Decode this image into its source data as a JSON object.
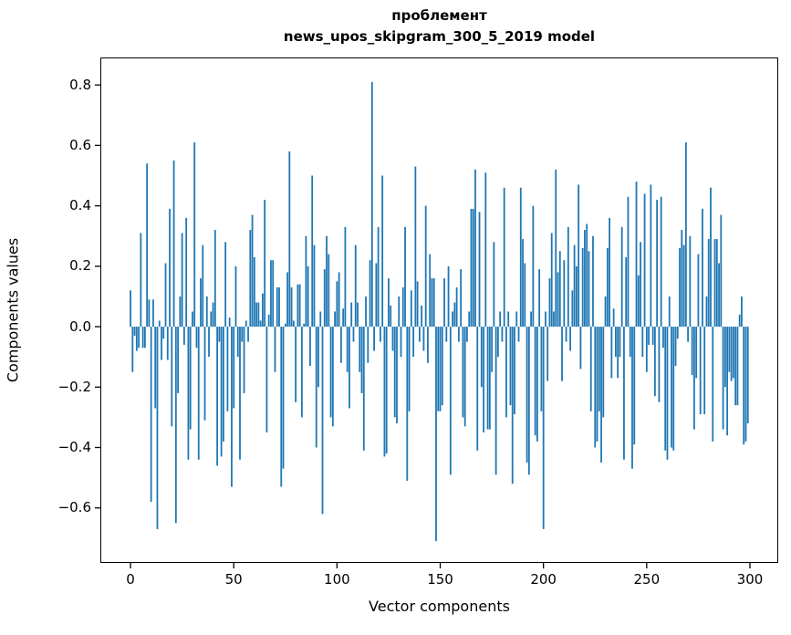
{
  "chart_data": {
    "type": "bar",
    "title": "проблемент",
    "subtitle": "news_upos_skipgram_300_5_2019 model",
    "xlabel": "Vector components",
    "ylabel": "Components values",
    "bar_color": "#1f77b4",
    "axis_color": "#000000",
    "legend": "none",
    "grid": false,
    "xlim": [
      -14.6,
      313.7
    ],
    "ylim": [
      -0.782,
      0.891
    ],
    "x_ticks": [
      0,
      50,
      100,
      150,
      200,
      250,
      300
    ],
    "x_tick_labels": [
      "0",
      "50",
      "100",
      "150",
      "200",
      "250",
      "300"
    ],
    "y_ticks": [
      -0.6,
      -0.4,
      -0.2,
      0.0,
      0.2,
      0.4,
      0.6,
      0.8
    ],
    "y_tick_labels": [
      "−0.6",
      "−0.4",
      "−0.2",
      "0.0",
      "0.2",
      "0.4",
      "0.6",
      "0.8"
    ],
    "x": "component index 0..299",
    "values": [
      0.12,
      -0.15,
      -0.03,
      -0.08,
      -0.07,
      0.31,
      -0.07,
      -0.07,
      0.54,
      0.09,
      -0.58,
      0.09,
      -0.27,
      -0.67,
      0.02,
      -0.11,
      -0.04,
      0.21,
      -0.11,
      0.39,
      -0.33,
      0.55,
      -0.65,
      -0.22,
      0.1,
      0.31,
      -0.06,
      0.36,
      -0.44,
      -0.34,
      0.05,
      0.61,
      -0.07,
      -0.44,
      0.16,
      0.27,
      -0.31,
      0.1,
      -0.1,
      0.05,
      0.08,
      0.32,
      -0.46,
      -0.05,
      -0.43,
      -0.38,
      0.28,
      -0.28,
      0.03,
      -0.53,
      -0.27,
      0.2,
      -0.1,
      -0.44,
      -0.05,
      -0.22,
      0.02,
      -0.05,
      0.32,
      0.37,
      0.23,
      0.08,
      0.08,
      0.02,
      0.11,
      0.42,
      -0.35,
      0.04,
      0.22,
      0.22,
      -0.15,
      0.13,
      0.13,
      -0.53,
      -0.47,
      0.01,
      0.18,
      0.58,
      0.13,
      0.02,
      -0.25,
      0.14,
      0.14,
      -0.3,
      0.01,
      0.3,
      0.2,
      -0.13,
      0.5,
      0.27,
      -0.4,
      -0.2,
      0.05,
      -0.62,
      0.19,
      0.3,
      0.24,
      -0.3,
      -0.33,
      0.05,
      0.15,
      0.18,
      -0.12,
      0.06,
      0.33,
      -0.15,
      -0.27,
      0.08,
      -0.05,
      0.27,
      0.08,
      -0.15,
      -0.22,
      -0.41,
      0.1,
      -0.12,
      0.22,
      0.81,
      -0.08,
      0.21,
      0.33,
      -0.05,
      0.5,
      -0.43,
      -0.42,
      0.16,
      0.07,
      -0.08,
      -0.3,
      -0.32,
      0.1,
      -0.1,
      0.13,
      0.33,
      -0.51,
      -0.28,
      0.12,
      -0.1,
      0.53,
      0.15,
      -0.05,
      0.07,
      -0.08,
      0.4,
      -0.12,
      0.24,
      0.16,
      0.16,
      -0.71,
      -0.28,
      -0.28,
      -0.26,
      0.16,
      -0.05,
      0.2,
      -0.49,
      0.05,
      0.08,
      0.13,
      -0.05,
      0.19,
      -0.3,
      -0.33,
      -0.05,
      0.05,
      0.39,
      0.39,
      0.52,
      -0.41,
      0.38,
      -0.2,
      -0.35,
      0.51,
      -0.34,
      -0.34,
      -0.15,
      0.28,
      -0.49,
      -0.1,
      0.05,
      -0.05,
      0.46,
      -0.3,
      0.05,
      -0.26,
      -0.52,
      -0.29,
      0.05,
      -0.05,
      0.46,
      0.29,
      0.21,
      -0.45,
      -0.49,
      0.05,
      0.4,
      -0.36,
      -0.38,
      0.19,
      -0.28,
      -0.67,
      0.05,
      -0.18,
      0.16,
      0.31,
      0.05,
      0.52,
      0.18,
      0.25,
      -0.18,
      0.22,
      -0.05,
      0.33,
      -0.08,
      0.12,
      0.27,
      0.2,
      0.47,
      -0.14,
      0.26,
      0.32,
      0.34,
      0.25,
      -0.28,
      0.3,
      -0.4,
      -0.38,
      -0.28,
      -0.45,
      -0.3,
      0.1,
      0.26,
      0.36,
      -0.17,
      0.06,
      -0.1,
      -0.17,
      -0.1,
      0.33,
      -0.44,
      0.23,
      0.43,
      -0.1,
      -0.47,
      -0.39,
      0.48,
      0.17,
      0.28,
      -0.1,
      0.44,
      -0.15,
      -0.06,
      0.47,
      -0.06,
      -0.23,
      0.42,
      -0.25,
      0.43,
      -0.07,
      -0.41,
      -0.44,
      0.1,
      -0.4,
      -0.41,
      -0.13,
      -0.04,
      0.26,
      0.32,
      0.27,
      0.61,
      -0.05,
      0.3,
      -0.16,
      -0.34,
      -0.17,
      0.24,
      -0.29,
      0.39,
      -0.29,
      0.1,
      0.29,
      0.46,
      -0.38,
      0.29,
      0.29,
      0.21,
      0.37,
      -0.34,
      -0.2,
      -0.36,
      -0.15,
      -0.18,
      -0.17,
      -0.26,
      -0.26,
      0.04,
      0.1,
      -0.39,
      -0.38,
      -0.32
    ]
  }
}
